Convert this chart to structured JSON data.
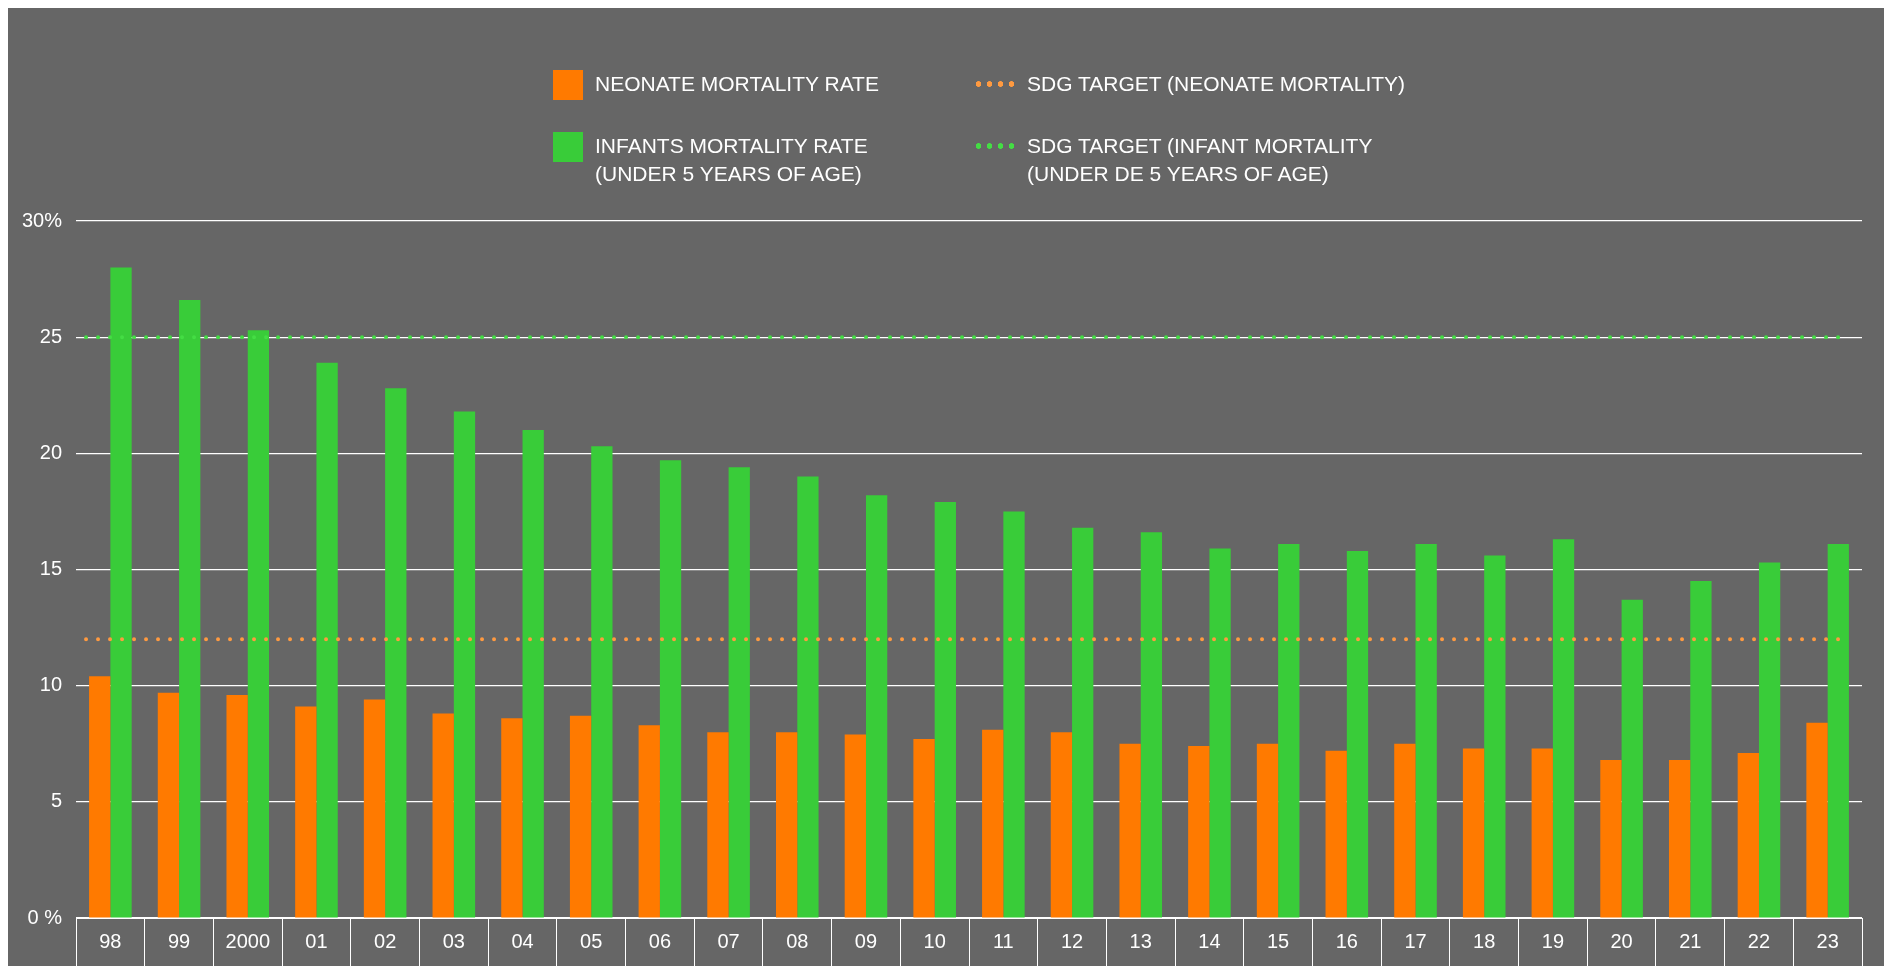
{
  "chart_data": {
    "type": "bar",
    "categories": [
      "98",
      "99",
      "2000",
      "01",
      "02",
      "03",
      "04",
      "05",
      "06",
      "07",
      "08",
      "09",
      "10",
      "11",
      "12",
      "13",
      "14",
      "15",
      "16",
      "17",
      "18",
      "19",
      "20",
      "21",
      "22",
      "23"
    ],
    "series": [
      {
        "name": "NEONATE MORTALITY RATE",
        "color": "#ff7a00",
        "values": [
          10.4,
          9.7,
          9.6,
          9.1,
          9.4,
          8.8,
          8.6,
          8.7,
          8.3,
          8.0,
          8.0,
          7.9,
          7.7,
          8.1,
          8.0,
          7.5,
          7.4,
          7.5,
          7.2,
          7.5,
          7.3,
          7.3,
          6.8,
          6.8,
          7.1,
          8.4
        ]
      },
      {
        "name": "INFANTS MORTALITY RATE\n(UNDER 5 YEARS OF AGE)",
        "color": "#39cc39",
        "values": [
          28.0,
          26.6,
          25.3,
          23.9,
          22.8,
          21.8,
          21.0,
          20.3,
          19.7,
          19.4,
          19.0,
          18.2,
          17.9,
          17.5,
          16.8,
          16.6,
          15.9,
          16.1,
          15.8,
          16.1,
          15.6,
          16.3,
          13.7,
          14.5,
          15.3,
          16.1
        ]
      }
    ],
    "ylim": [
      0,
      30
    ],
    "yticks": [
      {
        "value": 0,
        "label": "0 %"
      },
      5,
      10,
      15,
      20,
      25,
      {
        "value": 30,
        "label": "30%"
      }
    ],
    "ref_lines": [
      {
        "axis": "y",
        "value": 12,
        "label": "SDG TARGET (NEONATE MORTALITY)",
        "color": "#ff9a40",
        "line_style": "dotted"
      },
      {
        "axis": "y",
        "value": 25,
        "label": "SDG TARGET (INFANT MORTALITY\n(UNDER DE 5 YEARS OF AGE)",
        "color": "#44dd44",
        "line_style": "dotted"
      }
    ],
    "grid": "y",
    "legend": "top"
  }
}
